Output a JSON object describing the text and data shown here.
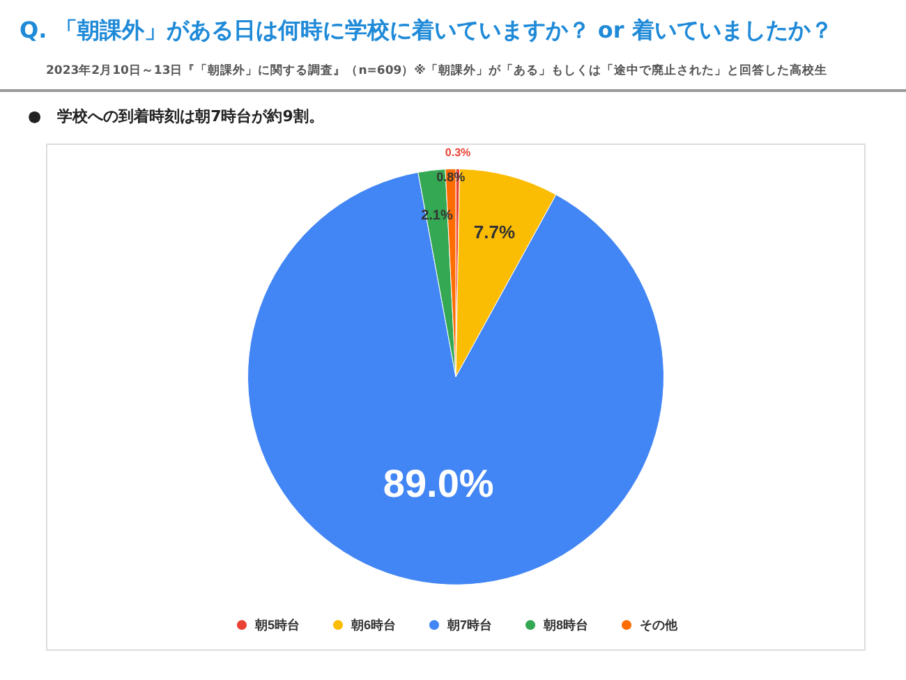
{
  "chart_data": {
    "type": "pie",
    "title": "Q. 「朝課外」がある日は何時に学校に着いていますか？ or 着いていましたか？",
    "subtitle": "2023年2月10日～13日『「朝課外」に関する調査』（n=609）※「朝課外」が「ある」もしくは「途中で廃止された」と回答した高校生",
    "annotations": [
      "● 学校への到着時刻は朝7時台が約9割。"
    ],
    "categories": [
      "朝5時台",
      "朝6時台",
      "朝7時台",
      "朝8時台",
      "その他"
    ],
    "values": [
      0.3,
      7.7,
      89.0,
      2.1,
      0.8
    ],
    "colors": [
      "#ea4335",
      "#fbbc04",
      "#4285f4",
      "#34a853",
      "#ff6d01"
    ],
    "value_labels": [
      "0.3%",
      "7.7%",
      "89.0%",
      "2.1%",
      "0.8%"
    ],
    "legend": "bottom"
  }
}
